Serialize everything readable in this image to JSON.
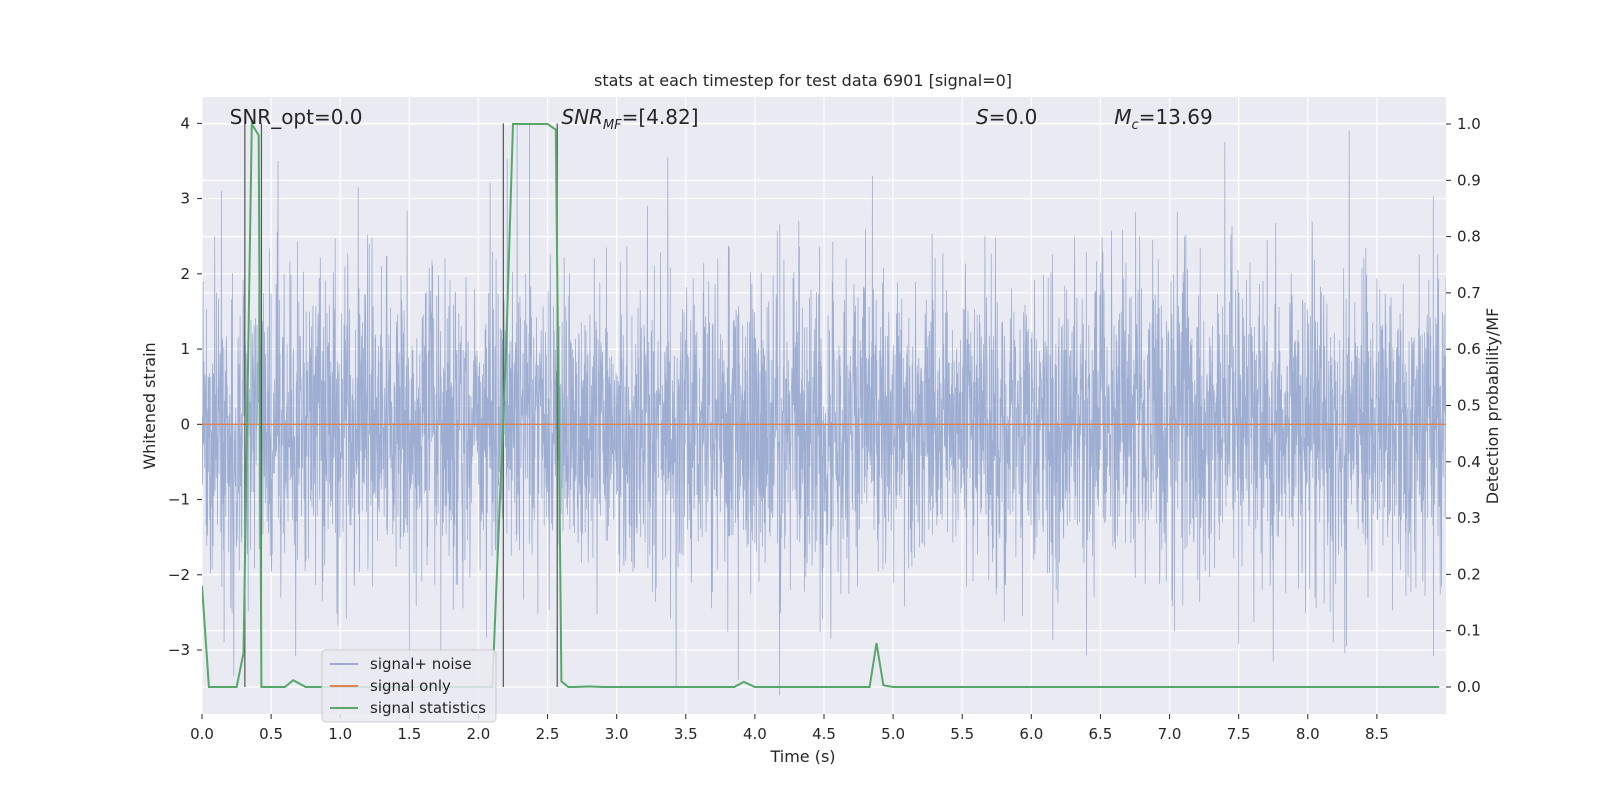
{
  "chart_data": {
    "type": "line",
    "title": "stats at each timestep for test data 6901 [signal=0]",
    "xlabel": "Time (s)",
    "ylabel_left": "Whitened strain",
    "ylabel_right": "Detection probability/MF",
    "xlim": [
      0.0,
      9.0
    ],
    "ylim_left": [
      -3.85,
      4.35
    ],
    "ylim_right": [
      -0.048,
      1.048
    ],
    "x_ticks": [
      "0.0",
      "0.5",
      "1.0",
      "1.5",
      "2.0",
      "2.5",
      "3.0",
      "3.5",
      "4.0",
      "4.5",
      "5.0",
      "5.5",
      "6.0",
      "6.5",
      "7.0",
      "7.5",
      "8.0",
      "8.5"
    ],
    "y_ticks_left": [
      "−3",
      "−2",
      "−1",
      "0",
      "1",
      "2",
      "3",
      "4"
    ],
    "y_ticks_right": [
      "0.0",
      "0.1",
      "0.2",
      "0.3",
      "0.4",
      "0.5",
      "0.6",
      "0.7",
      "0.8",
      "0.9",
      "1.0"
    ],
    "grid": true,
    "colors": {
      "background": "#eaeaf2",
      "grid": "#ffffff",
      "noise": "#9aabd0",
      "signal_only": "#dd8452",
      "statistics": "#55a868",
      "vlines": "#555555"
    },
    "annotations": [
      {
        "text": "SNR_opt=0.0",
        "x": 0.2
      },
      {
        "text": "SNR",
        "sub": "MF",
        "rest": "=[4.82]",
        "x": 2.6,
        "italic": true
      },
      {
        "text": "S",
        "rest": "=0.0",
        "x": 5.6,
        "italic": true
      },
      {
        "text": "M",
        "sub": "c",
        "rest": "=13.69",
        "x": 6.6,
        "italic": true
      }
    ],
    "vertical_lines_x": [
      0.31,
      0.43,
      2.18,
      2.57
    ],
    "series": [
      {
        "name": "signal+ noise",
        "kind": "noise",
        "description": "whitened strain, roughly standard normal noise",
        "envelope_sigma": 1.0,
        "notable_spikes": [
          {
            "x": 0.14,
            "y": 3.1
          },
          {
            "x": 0.55,
            "y": 3.5
          },
          {
            "x": 0.23,
            "y": -3.35
          },
          {
            "x": 1.13,
            "y": 3.15
          },
          {
            "x": 1.5,
            "y": -3.15
          },
          {
            "x": 2.28,
            "y": 4.0
          },
          {
            "x": 2.37,
            "y": 4.0
          },
          {
            "x": 3.37,
            "y": 3.55
          },
          {
            "x": 3.43,
            "y": -3.5
          },
          {
            "x": 3.88,
            "y": -3.4
          },
          {
            "x": 4.85,
            "y": 3.3
          },
          {
            "x": 4.55,
            "y": -2.85
          },
          {
            "x": 7.4,
            "y": 3.75
          },
          {
            "x": 8.3,
            "y": 3.9
          },
          {
            "x": 7.75,
            "y": -3.15
          },
          {
            "x": 8.28,
            "y": -2.95
          }
        ]
      },
      {
        "name": "signal only",
        "kind": "flat",
        "x": [
          0.0,
          9.0
        ],
        "y": [
          0.0,
          0.0
        ]
      },
      {
        "name": "signal statistics",
        "kind": "line",
        "axis": "right",
        "x": [
          0.0,
          0.05,
          0.25,
          0.3,
          0.36,
          0.41,
          0.43,
          0.47,
          0.6,
          0.66,
          0.75,
          1.0,
          1.5,
          2.0,
          2.1,
          2.2,
          2.25,
          2.3,
          2.5,
          2.56,
          2.6,
          2.65,
          2.7,
          2.8,
          2.9,
          3.5,
          3.85,
          3.92,
          4.0,
          4.5,
          4.83,
          4.88,
          4.93,
          5.0,
          5.5,
          6.0,
          7.0,
          8.0,
          8.95
        ],
        "y": [
          0.18,
          0.0,
          0.0,
          0.06,
          1.0,
          0.98,
          0.0,
          0.0,
          0.0,
          0.012,
          0.0,
          0.0,
          0.0,
          0.0,
          0.0,
          0.6,
          1.0,
          1.0,
          1.0,
          0.99,
          0.01,
          0.0,
          0.0,
          0.001,
          0.0,
          0.0,
          0.0,
          0.009,
          0.0,
          0.0,
          0.0,
          0.078,
          0.003,
          0.0,
          0.0,
          0.0,
          0.0,
          0.0,
          0.0
        ]
      }
    ],
    "legend": [
      "signal+ noise",
      "signal only",
      "signal statistics"
    ],
    "legend_loc": "lower-left"
  }
}
